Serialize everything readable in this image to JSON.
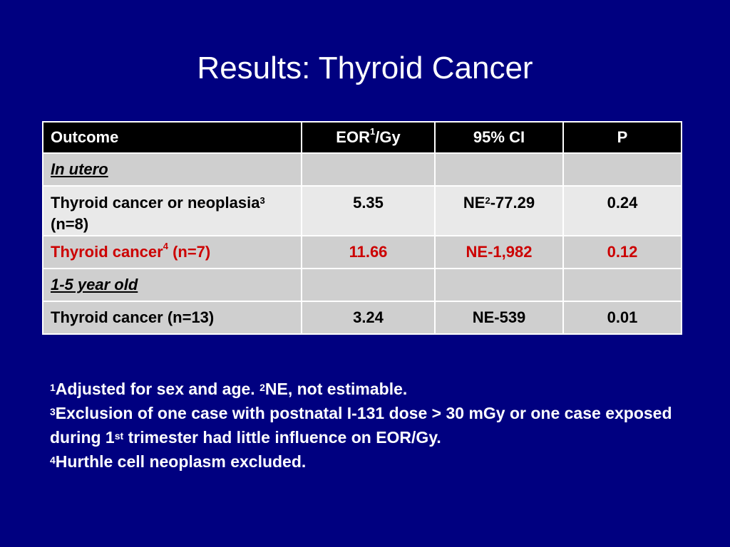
{
  "title": "Results: Thyroid Cancer",
  "table": {
    "headers": {
      "outcome": "Outcome",
      "eor_pre": "EOR",
      "eor_sup": "1",
      "eor_post": "/Gy",
      "ci": "95% CI",
      "p": "P"
    },
    "section1": "In utero",
    "row1": {
      "outcome_pre": "Thyroid cancer or neoplasia",
      "outcome_sup": "3",
      "outcome_post": " (n=8)",
      "eor": "5.35",
      "ci_pre": "NE",
      "ci_sup": "2",
      "ci_post": "-77.29",
      "p": "0.24"
    },
    "row2": {
      "outcome_pre": "Thyroid cancer",
      "outcome_sup": "4",
      "outcome_post": " (n=7)",
      "eor": "11.66",
      "ci": "NE-1,982",
      "p": "0.12"
    },
    "section2": "1-5 year old",
    "row3": {
      "outcome": "Thyroid cancer (n=13)",
      "eor": "3.24",
      "ci": "NE-539",
      "p": "0.01"
    }
  },
  "footnotes": {
    "f1_sup": "1",
    "f1_text": "Adjusted for sex and age. ",
    "f2_sup": "2",
    "f2_text": "NE, not estimable.",
    "f3_sup": "3",
    "f3_text_a": "Exclusion of one case with postnatal I-131 dose > 30 mGy or one case exposed during 1",
    "f3_ord": "st",
    "f3_text_b": " trimester had little influence on EOR/Gy.",
    "f4_sup": "4",
    "f4_text": "Hurthle cell neoplasm excluded."
  },
  "colors": {
    "background": "#000080",
    "header_bg": "#000000",
    "row_light": "#e9e9e9",
    "row_dark": "#cfcfcf",
    "highlight_text": "#cc0000"
  }
}
